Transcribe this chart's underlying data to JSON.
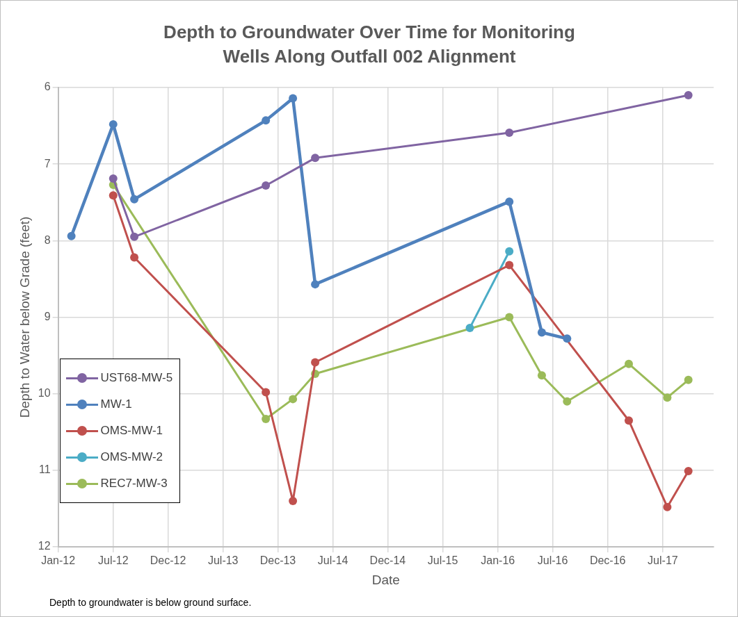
{
  "chart_data": {
    "type": "line",
    "title": "Depth to Groundwater Over Time for Monitoring Wells Along Outfall 002 Alignment",
    "xlabel": "Date",
    "ylabel": "Depth to Water below Grade (feet)",
    "annotations": [
      "Depth to groundwater is below ground surface."
    ],
    "xlim": [
      "2012-01-01",
      "2017-12-18"
    ],
    "xticks": [
      {
        "value": "2012-01-01",
        "label": "Jan-12"
      },
      {
        "value": "2012-07-02",
        "label": "Jul-12"
      },
      {
        "value": "2012-12-31",
        "label": "Dec-12"
      },
      {
        "value": "2013-07-02",
        "label": "Jul-13"
      },
      {
        "value": "2013-12-31",
        "label": "Dec-13"
      },
      {
        "value": "2014-07-02",
        "label": "Jul-14"
      },
      {
        "value": "2014-12-31",
        "label": "Dec-14"
      },
      {
        "value": "2015-07-02",
        "label": "Jul-15"
      },
      {
        "value": "2016-01-01",
        "label": "Jan-16"
      },
      {
        "value": "2016-07-01",
        "label": "Jul-16"
      },
      {
        "value": "2016-12-31",
        "label": "Dec-16"
      },
      {
        "value": "2017-07-02",
        "label": "Jul-17"
      }
    ],
    "ylim": [
      12,
      6
    ],
    "yticks": [
      6,
      7,
      8,
      9,
      10,
      11,
      12
    ],
    "grid": true,
    "legend": "left",
    "marker": "circle",
    "line_style": "solid",
    "series": [
      {
        "name": "UST68-MW-5",
        "color": "#8064a2",
        "x": [
          "2012-07-02",
          "2012-09-10",
          "2013-11-21",
          "2014-05-04",
          "2016-02-08",
          "2017-09-25"
        ],
        "values": [
          7.19,
          7.95,
          7.28,
          6.92,
          6.59,
          6.1
        ]
      },
      {
        "name": "MW-1",
        "color": "#4f81bd",
        "x": [
          "2012-02-14",
          "2012-07-02",
          "2012-09-10",
          "2013-11-21",
          "2014-02-19",
          "2014-05-04",
          "2016-02-08",
          "2016-05-26",
          "2016-08-18"
        ],
        "values": [
          7.94,
          6.48,
          7.46,
          6.43,
          6.14,
          8.57,
          7.49,
          9.2,
          9.28
        ]
      },
      {
        "name": "OMS-MW-1",
        "color": "#c0504d",
        "x": [
          "2012-07-02",
          "2012-09-10",
          "2013-11-21",
          "2014-02-19",
          "2014-05-04",
          "2016-02-08",
          "2017-03-11",
          "2017-07-17",
          "2017-09-25"
        ],
        "values": [
          7.41,
          8.22,
          9.98,
          11.4,
          9.59,
          8.32,
          10.35,
          11.48,
          11.01
        ]
      },
      {
        "name": "OMS-MW-2",
        "color": "#4bacc6",
        "x": [
          "2015-09-30",
          "2016-02-08"
        ],
        "values": [
          9.14,
          8.14
        ]
      },
      {
        "name": "REC7-MW-3",
        "color": "#9bbb59",
        "x": [
          "2012-07-02",
          "2013-11-21",
          "2014-02-19",
          "2014-05-04",
          "2016-02-08",
          "2016-05-26",
          "2016-08-18",
          "2017-03-11",
          "2017-07-17",
          "2017-09-25"
        ],
        "values": [
          7.27,
          10.33,
          10.07,
          9.74,
          9.0,
          9.76,
          10.1,
          9.61,
          10.05,
          9.82
        ]
      }
    ]
  }
}
